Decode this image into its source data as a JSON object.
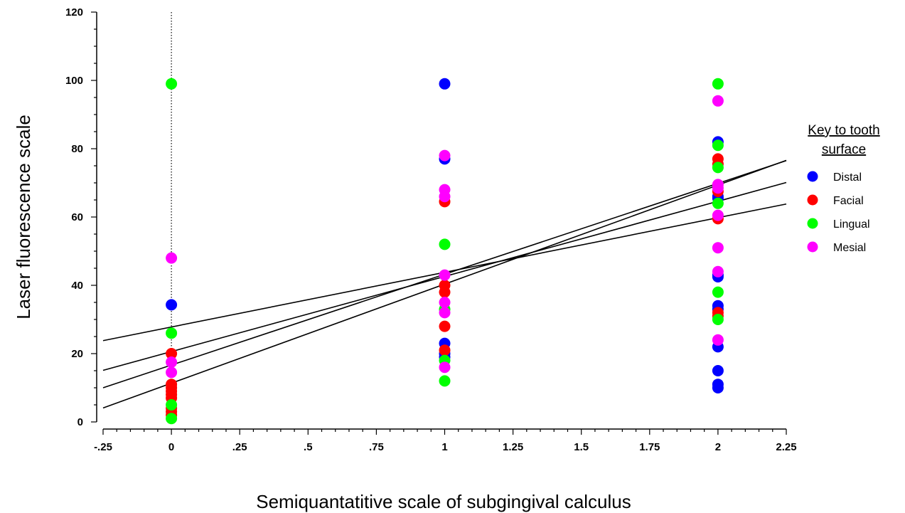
{
  "chart_data": {
    "type": "scatter",
    "xlabel": "Semiquantatitive scale of subgingival calculus",
    "ylabel": "Laser fluorescence scale",
    "xlim": [
      -0.25,
      2.25
    ],
    "ylim": [
      0,
      120
    ],
    "x_ticks": [
      {
        "value": -0.25,
        "label": "-.25"
      },
      {
        "value": 0,
        "label": "0"
      },
      {
        "value": 0.25,
        "label": ".25"
      },
      {
        "value": 0.5,
        "label": ".5"
      },
      {
        "value": 0.75,
        "label": ".75"
      },
      {
        "value": 1,
        "label": "1"
      },
      {
        "value": 1.25,
        "label": "1.25"
      },
      {
        "value": 1.5,
        "label": "1.5"
      },
      {
        "value": 1.75,
        "label": "1.75"
      },
      {
        "value": 2,
        "label": "2"
      },
      {
        "value": 2.25,
        "label": "2.25"
      }
    ],
    "y_ticks": [
      {
        "value": 0,
        "label": "0"
      },
      {
        "value": 20,
        "label": "20"
      },
      {
        "value": 40,
        "label": "40"
      },
      {
        "value": 60,
        "label": "60"
      },
      {
        "value": 80,
        "label": "80"
      },
      {
        "value": 100,
        "label": "100"
      },
      {
        "value": 120,
        "label": "120"
      }
    ],
    "grid": false,
    "reference_line_x": 0,
    "legend": {
      "title_line1": "Key to tooth",
      "title_line2": "surface",
      "position": "right"
    },
    "series": [
      {
        "name": "Distal",
        "color": "#0000ff",
        "points": [
          [
            0,
            34.3
          ],
          [
            1,
            99
          ],
          [
            1,
            77
          ],
          [
            1,
            23
          ],
          [
            1,
            20
          ],
          [
            1,
            19
          ],
          [
            2,
            82
          ],
          [
            2,
            66
          ],
          [
            2,
            65.5
          ],
          [
            2,
            43
          ],
          [
            2,
            42.5
          ],
          [
            2,
            34
          ],
          [
            2,
            33
          ],
          [
            2,
            22
          ],
          [
            2,
            15
          ],
          [
            2,
            11
          ],
          [
            2,
            10
          ]
        ]
      },
      {
        "name": "Facial",
        "color": "#ff0000",
        "points": [
          [
            0,
            20
          ],
          [
            0,
            11
          ],
          [
            0,
            10
          ],
          [
            0,
            9
          ],
          [
            0,
            8
          ],
          [
            0,
            7
          ],
          [
            0,
            4
          ],
          [
            0,
            3
          ],
          [
            0,
            2
          ],
          [
            1,
            64.5
          ],
          [
            1,
            40
          ],
          [
            1,
            38
          ],
          [
            1,
            28
          ],
          [
            1,
            21
          ],
          [
            2,
            77
          ],
          [
            2,
            75.5
          ],
          [
            2,
            67.5
          ],
          [
            2,
            59.5
          ],
          [
            2,
            32
          ],
          [
            2,
            31
          ]
        ]
      },
      {
        "name": "Lingual",
        "color": "#00ff00",
        "points": [
          [
            0,
            99
          ],
          [
            0,
            26
          ],
          [
            0,
            5
          ],
          [
            0,
            1
          ],
          [
            1,
            52
          ],
          [
            1,
            33
          ],
          [
            1,
            18
          ],
          [
            1,
            12
          ],
          [
            2,
            99
          ],
          [
            2,
            81
          ],
          [
            2,
            74.5
          ],
          [
            2,
            64
          ],
          [
            2,
            38
          ],
          [
            2,
            30
          ]
        ]
      },
      {
        "name": "Mesial",
        "color": "#ff00ff",
        "points": [
          [
            0,
            48
          ],
          [
            0,
            17.5
          ],
          [
            0,
            14.5
          ],
          [
            1,
            78
          ],
          [
            1,
            68
          ],
          [
            1,
            66
          ],
          [
            1,
            43
          ],
          [
            1,
            35
          ],
          [
            1,
            32
          ],
          [
            1,
            16
          ],
          [
            2,
            94
          ],
          [
            2,
            69.5
          ],
          [
            2,
            68.5
          ],
          [
            2,
            60.5
          ],
          [
            2,
            51
          ],
          [
            2,
            44
          ],
          [
            2,
            24
          ]
        ]
      }
    ],
    "regression_lines": [
      {
        "x": [
          -0.25,
          2.25
        ],
        "y": [
          23.8,
          63.8
        ]
      },
      {
        "x": [
          -0.25,
          2.25
        ],
        "y": [
          15.1,
          70.1
        ]
      },
      {
        "x": [
          -0.25,
          2.25
        ],
        "y": [
          10.0,
          76.5
        ]
      },
      {
        "x": [
          -0.25,
          2.25
        ],
        "y": [
          4.1,
          76.6
        ]
      }
    ]
  }
}
